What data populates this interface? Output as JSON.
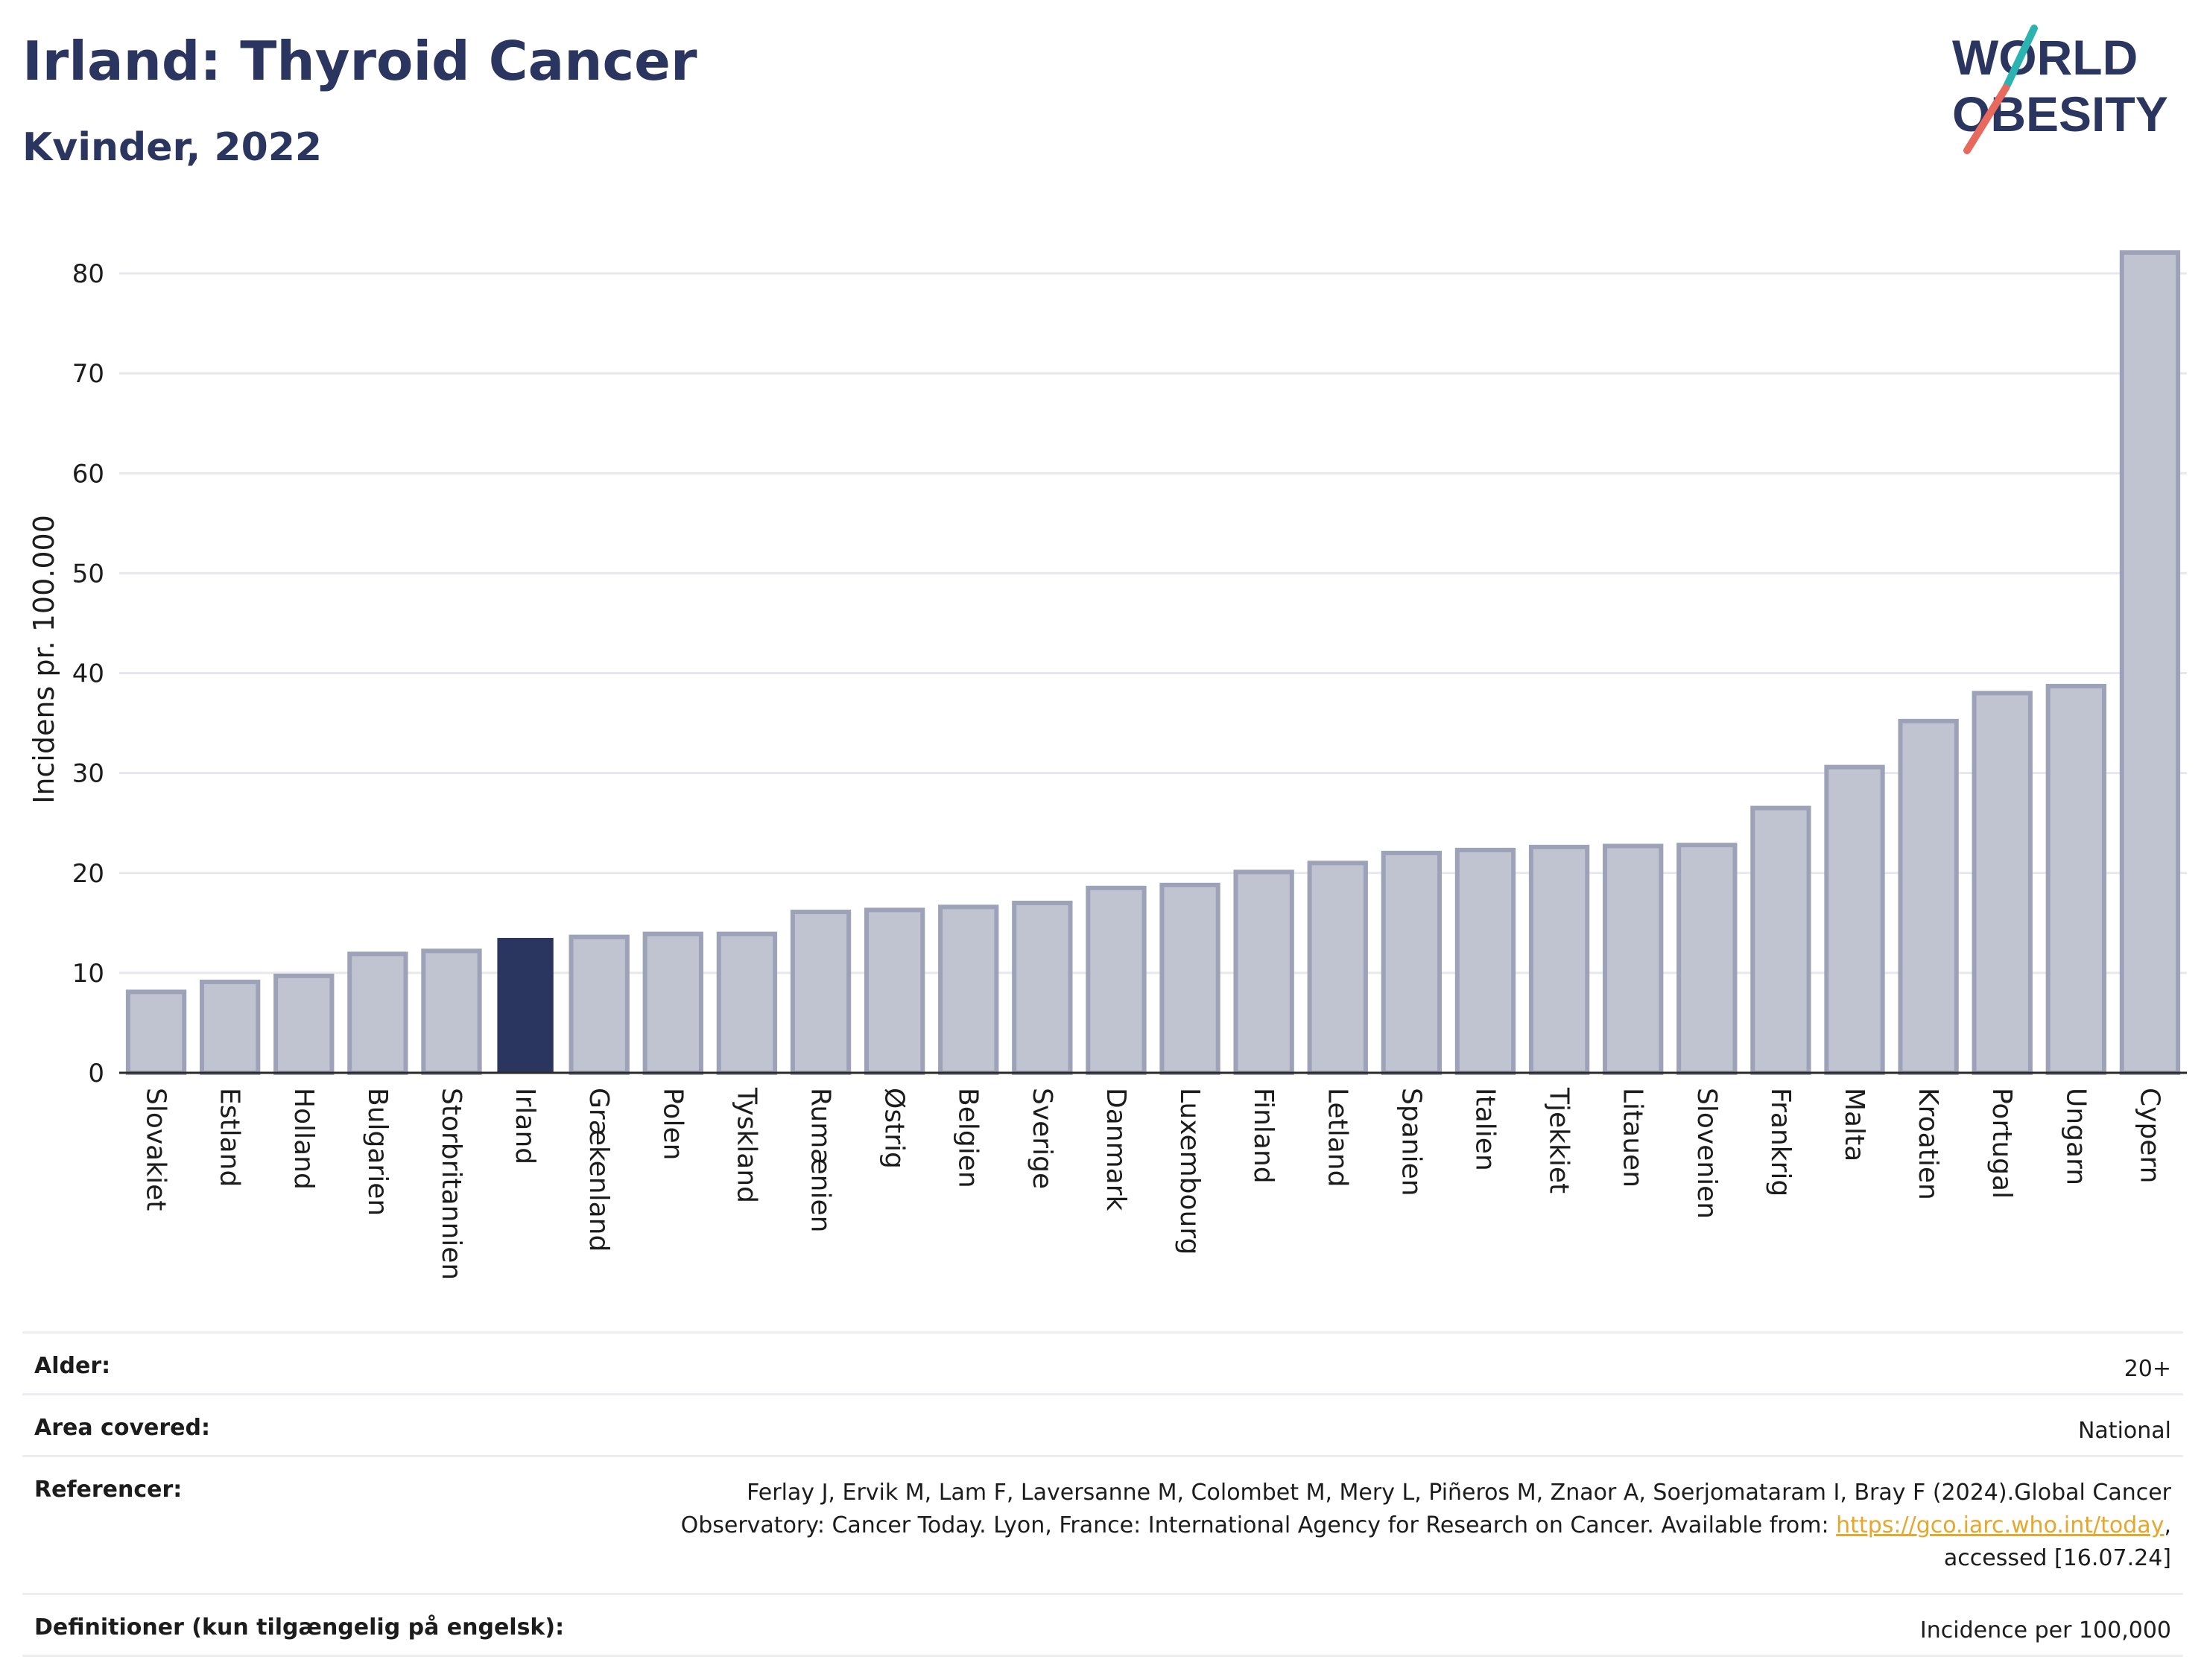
{
  "header": {
    "title": "Irland: Thyroid Cancer",
    "subtitle": "Kvinder, 2022"
  },
  "logo": {
    "line1": "WORLD",
    "line2": "OBESITY",
    "colors": {
      "text": "#2a3560",
      "slash_top": "#2bb3b1",
      "slash_bottom": "#e8695d"
    }
  },
  "chart_data": {
    "type": "bar",
    "categories": [
      "Slovakiet",
      "Estland",
      "Holland",
      "Bulgarien",
      "Storbritannien",
      "Irland",
      "Grækenland",
      "Polen",
      "Tyskland",
      "Rumænien",
      "Østrig",
      "Belgien",
      "Sverige",
      "Danmark",
      "Luxembourg",
      "Finland",
      "Letland",
      "Spanien",
      "Italien",
      "Tjekkiet",
      "Litauen",
      "Slovenien",
      "Frankrig",
      "Malta",
      "Kroatien",
      "Portugal",
      "Ungarn",
      "Cypern"
    ],
    "values": [
      8.1,
      9.1,
      9.7,
      11.9,
      12.2,
      13.5,
      13.6,
      13.9,
      13.9,
      16.1,
      16.3,
      16.6,
      17.0,
      18.5,
      18.8,
      20.1,
      21.0,
      22.0,
      22.3,
      22.6,
      22.7,
      22.8,
      26.5,
      30.6,
      35.2,
      38.0,
      38.7,
      82.1
    ],
    "highlight": "Irland",
    "ylabel": "Incidens pr. 100.000",
    "ylim": [
      0,
      85
    ],
    "yticks": [
      0,
      10,
      20,
      30,
      40,
      50,
      60,
      70,
      80
    ],
    "grid": true,
    "colors": {
      "bar": "#c0c3d0",
      "bar_edge": "#9da2b8",
      "highlight": "#2a3560",
      "grid": "#e6e8ee"
    }
  },
  "info_table": {
    "rows": [
      {
        "key": "Alder:",
        "value": "20+"
      },
      {
        "key": "Area covered:",
        "value": "National"
      },
      {
        "key": "Referencer:",
        "value_line1": "Ferlay J, Ervik M, Lam F, Laversanne M, Colombet M, Mery L, Piñeros M, Znaor A, Soerjomataram I, Bray F (2024).Global Cancer",
        "value_line2_pre": "Observatory: Cancer Today. Lyon, France: International Agency for Research on Cancer. Available from: ",
        "link": "https://gco.iarc.who.int/today",
        "value_line2_post": ",",
        "value_line3": "accessed [16.07.24]"
      },
      {
        "key": "Definitioner (kun tilgængelig på engelsk):",
        "value": "Incidence per 100,000"
      }
    ]
  }
}
